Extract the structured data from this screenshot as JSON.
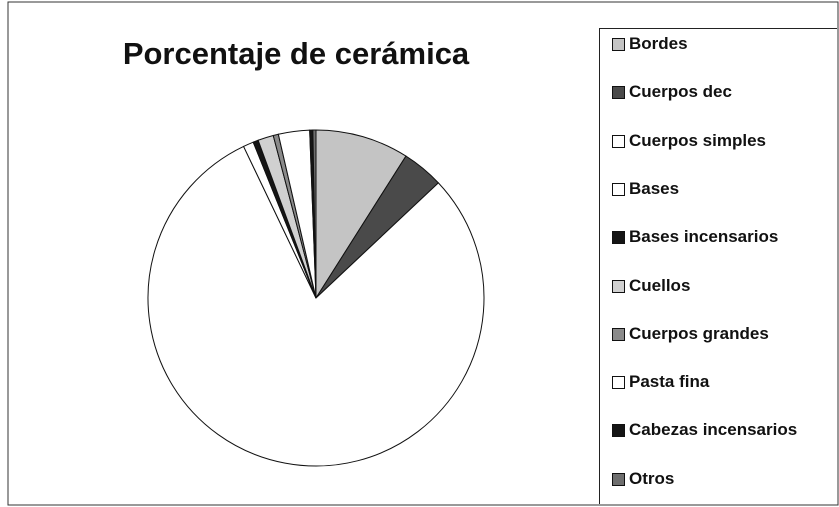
{
  "chart_data": {
    "type": "pie",
    "title": "Porcentaje de cerámica",
    "categories": [
      "Bordes",
      "Cuerpos dec",
      "Cuerpos simples",
      "Bases",
      "Bases incensarios",
      "Cuellos",
      "Cuerpos grandes",
      "Pasta fina",
      "Cabezas incensarios",
      "Otros"
    ],
    "values": [
      9,
      4,
      80,
      1,
      0.5,
      1.5,
      0.5,
      3,
      0.3,
      0.3
    ],
    "colors": [
      "#c4c4c4",
      "#4a4a4a",
      "#ffffff",
      "#ffffff",
      "#151515",
      "#d0d0d0",
      "#8a8a8a",
      "#ffffff",
      "#151515",
      "#6e6e6e"
    ],
    "legend": "right"
  }
}
